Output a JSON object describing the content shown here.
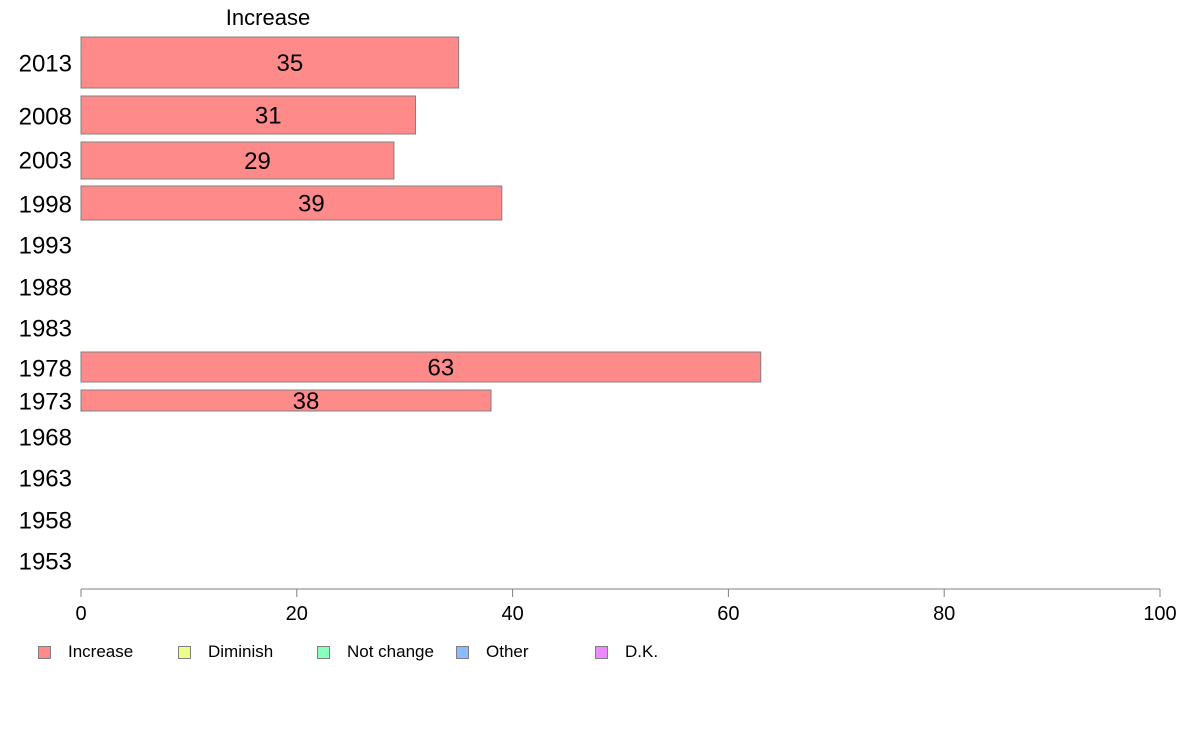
{
  "chart_data": {
    "type": "bar",
    "orientation": "horizontal",
    "series_title": "Increase",
    "categories": [
      "2013",
      "2008",
      "2003",
      "1998",
      "1993",
      "1988",
      "1983",
      "1978",
      "1973",
      "1968",
      "1963",
      "1958",
      "1953"
    ],
    "series": [
      {
        "name": "Increase",
        "color": "#ff8a8a",
        "values": [
          35,
          31,
          29,
          39,
          null,
          null,
          null,
          63,
          38,
          null,
          null,
          null,
          null
        ]
      }
    ],
    "data_labels": [
      "35",
      "31",
      "29",
      "39",
      "",
      "",
      "",
      "63",
      "38",
      "",
      "",
      "",
      ""
    ],
    "xlim": [
      0,
      100
    ],
    "xticks": [
      "0",
      "20",
      "40",
      "60",
      "80",
      "100"
    ],
    "grid": false,
    "legend_position": "bottom",
    "legend": [
      {
        "label": "Increase",
        "color": "#ff8a8a"
      },
      {
        "label": "Diminish",
        "color": "#eeff88"
      },
      {
        "label": "Not change",
        "color": "#88ffbb"
      },
      {
        "label": "Other",
        "color": "#88bbff"
      },
      {
        "label": "D.K.",
        "color": "#ee88ff"
      }
    ]
  }
}
